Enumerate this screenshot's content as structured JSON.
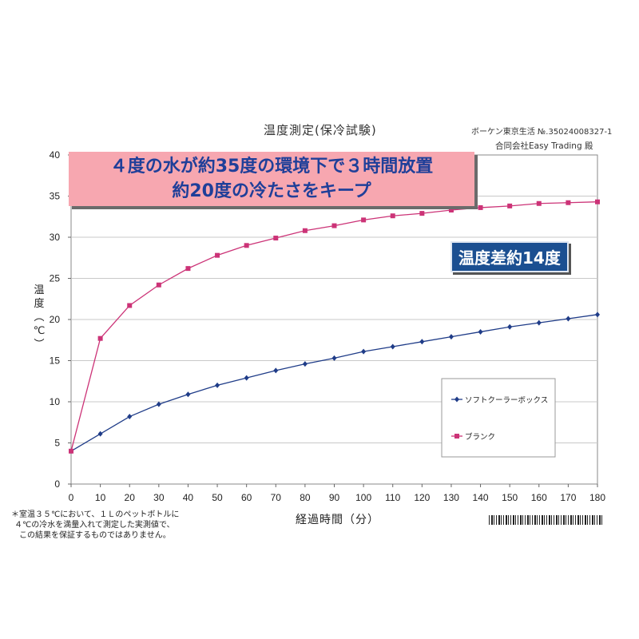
{
  "title": "温度測定(保冷試験)",
  "reference": "ボーケン東京生活 №.35024008327-1",
  "client": "合同会社Easy Trading 殿",
  "banner": {
    "line1": "４度の水が約35度の環境下で３時間放置",
    "line2": "約20度の冷たさをキープ",
    "color": "#f7a7b0"
  },
  "badge": {
    "text": "温度差約14度",
    "color": "#1b4f91"
  },
  "ylabel_text": "温\n度\n︵\n℃\n︶",
  "xlabel_text": "経過時間（分）",
  "footnote": [
    "＊室温３５℃において、１Ｌのペットボトルに",
    "４℃の冷水を満量入れて測定した実測値で、",
    "この結果を保証するものではありません。"
  ],
  "chart_data": {
    "type": "line",
    "title": "温度測定(保冷試験)",
    "xlabel": "経過時間（分）",
    "ylabel": "温度（℃）",
    "x": [
      0,
      10,
      20,
      30,
      40,
      50,
      60,
      70,
      80,
      90,
      100,
      110,
      120,
      130,
      140,
      150,
      160,
      170,
      180
    ],
    "xlim": [
      0,
      180
    ],
    "ylim": [
      0,
      40
    ],
    "xticks": [
      0,
      10,
      20,
      30,
      40,
      50,
      60,
      70,
      80,
      90,
      100,
      110,
      120,
      130,
      140,
      150,
      160,
      170,
      180
    ],
    "yticks": [
      0,
      5,
      10,
      15,
      20,
      25,
      30,
      35,
      40
    ],
    "grid": true,
    "legend_position": "bottom-right",
    "series": [
      {
        "name": "ソフトクーラーボックス",
        "color": "#1f3c88",
        "marker": "diamond",
        "values": [
          4.0,
          6.1,
          8.2,
          9.7,
          10.9,
          12.0,
          12.9,
          13.8,
          14.6,
          15.3,
          16.1,
          16.7,
          17.3,
          17.9,
          18.5,
          19.1,
          19.6,
          20.1,
          20.6
        ]
      },
      {
        "name": "ブランク",
        "color": "#cc3377",
        "marker": "square",
        "values": [
          4.0,
          17.7,
          21.7,
          24.2,
          26.2,
          27.8,
          29.0,
          29.9,
          30.8,
          31.4,
          32.1,
          32.6,
          32.9,
          33.3,
          33.6,
          33.8,
          34.1,
          34.2,
          34.3
        ]
      }
    ]
  }
}
